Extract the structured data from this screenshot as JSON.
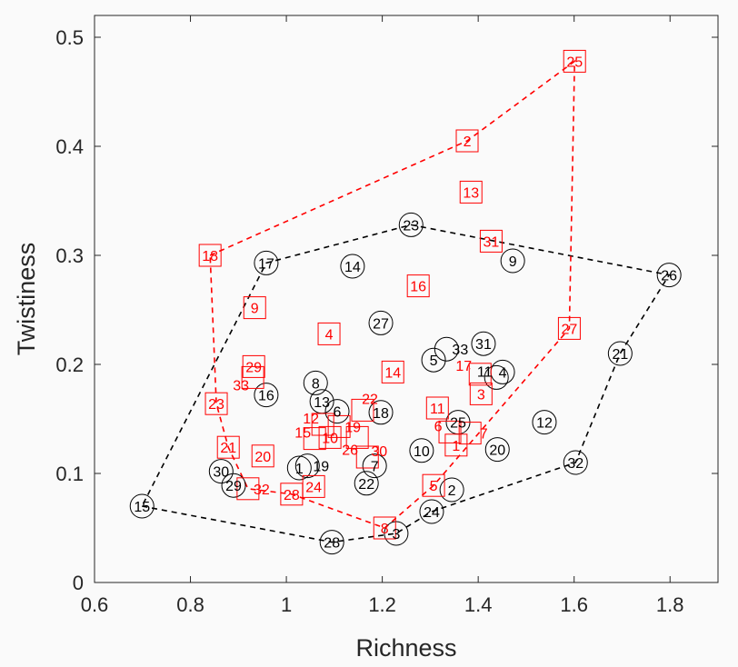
{
  "chart_data": {
    "type": "scatter",
    "title": "",
    "xlabel": "Richness",
    "ylabel": "Twistiness",
    "xlim": [
      0.6,
      1.9
    ],
    "ylim": [
      0,
      0.52
    ],
    "xticks": [
      0.6,
      0.8,
      1,
      1.2,
      1.4,
      1.6,
      1.8
    ],
    "xtick_labels": [
      "0.6",
      "0.8",
      "1",
      "1.2",
      "1.4",
      "1.6",
      "1.8"
    ],
    "yticks": [
      0,
      0.1,
      0.2,
      0.3,
      0.4,
      0.5
    ],
    "ytick_labels": [
      "0",
      "0.1",
      "0.2",
      "0.3",
      "0.4",
      "0.5"
    ],
    "grid": false,
    "series": [
      {
        "name": "circles",
        "marker": "circle",
        "color": "#000000",
        "points": [
          {
            "label": "1",
            "x": 1.027,
            "y": 0.105
          },
          {
            "label": "2",
            "x": 1.345,
            "y": 0.085
          },
          {
            "label": "3",
            "x": 1.229,
            "y": 0.045
          },
          {
            "label": "4",
            "x": 1.451,
            "y": 0.193
          },
          {
            "label": "5",
            "x": 1.307,
            "y": 0.204
          },
          {
            "label": "6",
            "x": 1.106,
            "y": 0.157
          },
          {
            "label": "7",
            "x": 1.184,
            "y": 0.107
          },
          {
            "label": "8",
            "x": 1.061,
            "y": 0.183
          },
          {
            "label": "9",
            "x": 1.472,
            "y": 0.295
          },
          {
            "label": "10",
            "x": 1.282,
            "y": 0.121
          },
          {
            "label": "11",
            "x": 1.438,
            "y": 0.188
          },
          {
            "label": "12",
            "x": 1.538,
            "y": 0.147
          },
          {
            "label": "13",
            "x": 1.074,
            "y": 0.166
          },
          {
            "label": "14",
            "x": 1.138,
            "y": 0.29
          },
          {
            "label": "15",
            "x": 0.699,
            "y": 0.07
          },
          {
            "label": "16",
            "x": 0.958,
            "y": 0.172
          },
          {
            "label": "17",
            "x": 0.958,
            "y": 0.293
          },
          {
            "label": "18",
            "x": 1.197,
            "y": 0.156
          },
          {
            "label": "19",
            "x": 1.044,
            "y": 0.107
          },
          {
            "label": "20",
            "x": 1.44,
            "y": 0.122
          },
          {
            "label": "21",
            "x": 1.696,
            "y": 0.21
          },
          {
            "label": "22",
            "x": 1.167,
            "y": 0.091
          },
          {
            "label": "23",
            "x": 1.26,
            "y": 0.328
          },
          {
            "label": "24",
            "x": 1.303,
            "y": 0.065
          },
          {
            "label": "25",
            "x": 1.358,
            "y": 0.147
          },
          {
            "label": "26",
            "x": 1.798,
            "y": 0.282
          },
          {
            "label": "27",
            "x": 1.197,
            "y": 0.238
          },
          {
            "label": "28",
            "x": 1.095,
            "y": 0.037
          },
          {
            "label": "29",
            "x": 0.89,
            "y": 0.089
          },
          {
            "label": "30",
            "x": 0.864,
            "y": 0.102
          },
          {
            "label": "31",
            "x": 1.411,
            "y": 0.219
          },
          {
            "label": "32",
            "x": 1.603,
            "y": 0.11
          },
          {
            "label": "33",
            "x": 1.334,
            "y": 0.214
          }
        ],
        "hull": [
          "15",
          "28",
          "3",
          "24",
          "32",
          "21",
          "26",
          "23",
          "17",
          "15"
        ]
      },
      {
        "name": "squares",
        "marker": "square",
        "color": "#ff0000",
        "points": [
          {
            "label": "1",
            "x": 1.354,
            "y": 0.126
          },
          {
            "label": "2",
            "x": 1.377,
            "y": 0.405
          },
          {
            "label": "3",
            "x": 1.406,
            "y": 0.173
          },
          {
            "label": "4",
            "x": 1.089,
            "y": 0.228
          },
          {
            "label": "5",
            "x": 1.307,
            "y": 0.089
          },
          {
            "label": "6",
            "x": 1.341,
            "y": 0.138
          },
          {
            "label": "7",
            "x": 1.383,
            "y": 0.137
          },
          {
            "label": "8",
            "x": 1.205,
            "y": 0.05
          },
          {
            "label": "9",
            "x": 0.934,
            "y": 0.252
          },
          {
            "label": "10",
            "x": 1.091,
            "y": 0.133
          },
          {
            "label": "11",
            "x": 1.315,
            "y": 0.16
          },
          {
            "label": "12",
            "x": 1.076,
            "y": 0.145
          },
          {
            "label": "13",
            "x": 1.385,
            "y": 0.358
          },
          {
            "label": "14",
            "x": 1.222,
            "y": 0.193
          },
          {
            "label": "15",
            "x": 1.059,
            "y": 0.132
          },
          {
            "label": "16",
            "x": 1.275,
            "y": 0.272
          },
          {
            "label": "17",
            "x": 1.404,
            "y": 0.191
          },
          {
            "label": "18",
            "x": 0.841,
            "y": 0.3
          },
          {
            "label": "19",
            "x": 1.11,
            "y": 0.143
          },
          {
            "label": "20",
            "x": 0.951,
            "y": 0.116
          },
          {
            "label": "21",
            "x": 0.879,
            "y": 0.124
          },
          {
            "label": "22",
            "x": 1.159,
            "y": 0.158
          },
          {
            "label": "23",
            "x": 0.854,
            "y": 0.164
          },
          {
            "label": "24",
            "x": 1.057,
            "y": 0.088
          },
          {
            "label": "25",
            "x": 1.601,
            "y": 0.478
          },
          {
            "label": "26",
            "x": 1.148,
            "y": 0.133
          },
          {
            "label": "27",
            "x": 1.59,
            "y": 0.233
          },
          {
            "label": "28",
            "x": 1.011,
            "y": 0.081
          },
          {
            "label": "29",
            "x": 0.932,
            "y": 0.198
          },
          {
            "label": "30",
            "x": 1.169,
            "y": 0.115
          },
          {
            "label": "31",
            "x": 1.427,
            "y": 0.313
          },
          {
            "label": "32",
            "x": 0.92,
            "y": 0.086
          },
          {
            "label": "33",
            "x": 0.93,
            "y": 0.188
          }
        ],
        "hull": [
          "18",
          "2",
          "25",
          "27",
          "5",
          "8",
          "28",
          "32",
          "21",
          "23",
          "18"
        ]
      }
    ]
  }
}
